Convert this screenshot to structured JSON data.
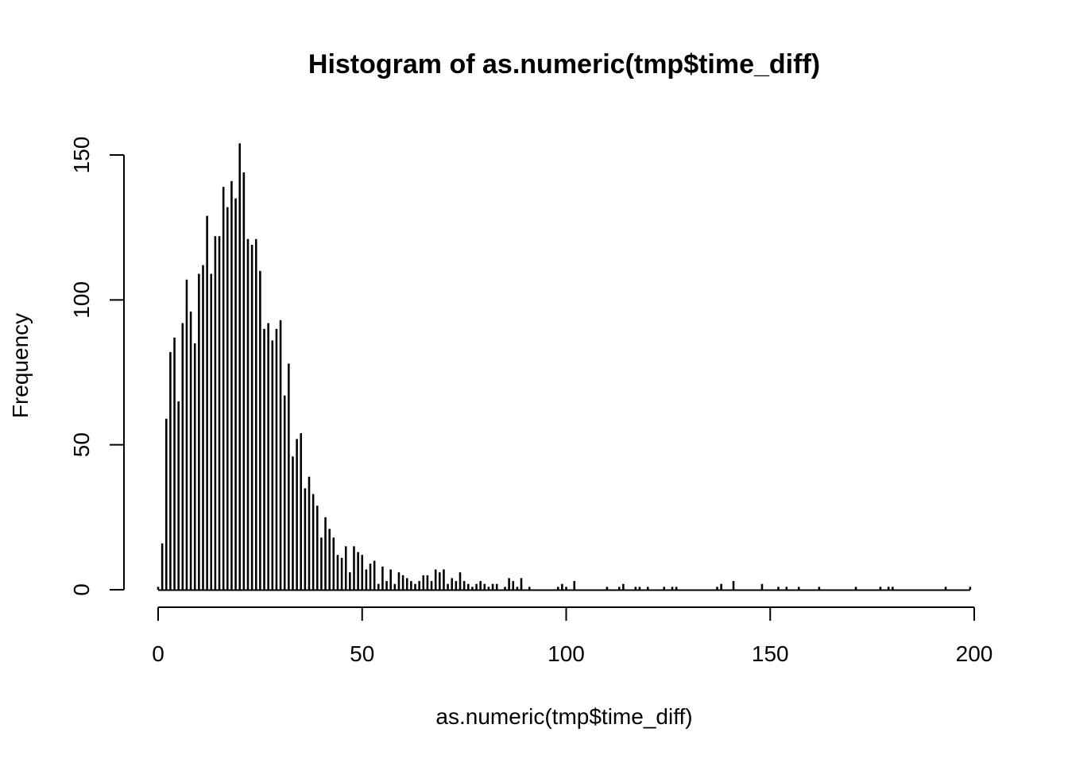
{
  "chart_data": {
    "type": "bar",
    "title": "Histogram of as.numeric(tmp$time_diff)",
    "xlabel": "as.numeric(tmp$time_diff)",
    "ylabel": "Frequency",
    "xlim": [
      0,
      200
    ],
    "ylim": [
      0,
      150
    ],
    "grid": false,
    "bin_width": 0.5,
    "x_ticks": [
      0,
      50,
      100,
      150,
      200
    ],
    "y_ticks": [
      0,
      50,
      100,
      150
    ],
    "x_tick_labels": [
      "0",
      "50",
      "100",
      "150",
      "200"
    ],
    "y_tick_labels": [
      "0",
      "50",
      "100",
      "150"
    ],
    "color": "#000000",
    "bins": [
      {
        "x": 0,
        "count": 1
      },
      {
        "x": 1,
        "count": 16
      },
      {
        "x": 2,
        "count": 59
      },
      {
        "x": 3,
        "count": 82
      },
      {
        "x": 4,
        "count": 87
      },
      {
        "x": 5,
        "count": 65
      },
      {
        "x": 6,
        "count": 92
      },
      {
        "x": 7,
        "count": 107
      },
      {
        "x": 8,
        "count": 96
      },
      {
        "x": 9,
        "count": 85
      },
      {
        "x": 10,
        "count": 109
      },
      {
        "x": 11,
        "count": 112
      },
      {
        "x": 12,
        "count": 129
      },
      {
        "x": 13,
        "count": 109
      },
      {
        "x": 14,
        "count": 122
      },
      {
        "x": 15,
        "count": 122
      },
      {
        "x": 16,
        "count": 139
      },
      {
        "x": 17,
        "count": 132
      },
      {
        "x": 18,
        "count": 141
      },
      {
        "x": 19,
        "count": 135
      },
      {
        "x": 20,
        "count": 154
      },
      {
        "x": 21,
        "count": 144
      },
      {
        "x": 22,
        "count": 121
      },
      {
        "x": 23,
        "count": 119
      },
      {
        "x": 24,
        "count": 121
      },
      {
        "x": 25,
        "count": 110
      },
      {
        "x": 26,
        "count": 90
      },
      {
        "x": 27,
        "count": 92
      },
      {
        "x": 28,
        "count": 86
      },
      {
        "x": 29,
        "count": 90
      },
      {
        "x": 30,
        "count": 93
      },
      {
        "x": 31,
        "count": 67
      },
      {
        "x": 32,
        "count": 78
      },
      {
        "x": 33,
        "count": 46
      },
      {
        "x": 34,
        "count": 52
      },
      {
        "x": 35,
        "count": 54
      },
      {
        "x": 36,
        "count": 35
      },
      {
        "x": 37,
        "count": 39
      },
      {
        "x": 38,
        "count": 33
      },
      {
        "x": 39,
        "count": 29
      },
      {
        "x": 40,
        "count": 18
      },
      {
        "x": 41,
        "count": 25
      },
      {
        "x": 42,
        "count": 21
      },
      {
        "x": 43,
        "count": 18
      },
      {
        "x": 44,
        "count": 12
      },
      {
        "x": 45,
        "count": 11
      },
      {
        "x": 46,
        "count": 15
      },
      {
        "x": 47,
        "count": 6
      },
      {
        "x": 48,
        "count": 15
      },
      {
        "x": 49,
        "count": 13
      },
      {
        "x": 50,
        "count": 12
      },
      {
        "x": 51,
        "count": 7
      },
      {
        "x": 52,
        "count": 9
      },
      {
        "x": 53,
        "count": 10
      },
      {
        "x": 54,
        "count": 2
      },
      {
        "x": 55,
        "count": 8
      },
      {
        "x": 56,
        "count": 3
      },
      {
        "x": 57,
        "count": 7
      },
      {
        "x": 58,
        "count": 2
      },
      {
        "x": 59,
        "count": 6
      },
      {
        "x": 60,
        "count": 5
      },
      {
        "x": 61,
        "count": 4
      },
      {
        "x": 62,
        "count": 3
      },
      {
        "x": 63,
        "count": 2
      },
      {
        "x": 64,
        "count": 3
      },
      {
        "x": 65,
        "count": 5
      },
      {
        "x": 66,
        "count": 5
      },
      {
        "x": 67,
        "count": 3
      },
      {
        "x": 68,
        "count": 7
      },
      {
        "x": 69,
        "count": 6
      },
      {
        "x": 70,
        "count": 7
      },
      {
        "x": 71,
        "count": 2
      },
      {
        "x": 72,
        "count": 4
      },
      {
        "x": 73,
        "count": 3
      },
      {
        "x": 74,
        "count": 6
      },
      {
        "x": 75,
        "count": 3
      },
      {
        "x": 76,
        "count": 2
      },
      {
        "x": 77,
        "count": 1
      },
      {
        "x": 78,
        "count": 2
      },
      {
        "x": 79,
        "count": 3
      },
      {
        "x": 80,
        "count": 2
      },
      {
        "x": 81,
        "count": 1
      },
      {
        "x": 82,
        "count": 2
      },
      {
        "x": 83,
        "count": 2
      },
      {
        "x": 85,
        "count": 1
      },
      {
        "x": 86,
        "count": 4
      },
      {
        "x": 87,
        "count": 3
      },
      {
        "x": 88,
        "count": 1
      },
      {
        "x": 89,
        "count": 4
      },
      {
        "x": 91,
        "count": 1
      },
      {
        "x": 98,
        "count": 1
      },
      {
        "x": 99,
        "count": 2
      },
      {
        "x": 100,
        "count": 1
      },
      {
        "x": 102,
        "count": 3
      },
      {
        "x": 110,
        "count": 1
      },
      {
        "x": 113,
        "count": 1
      },
      {
        "x": 114,
        "count": 2
      },
      {
        "x": 117,
        "count": 1
      },
      {
        "x": 118,
        "count": 1
      },
      {
        "x": 120,
        "count": 1
      },
      {
        "x": 124,
        "count": 1
      },
      {
        "x": 126,
        "count": 1
      },
      {
        "x": 127,
        "count": 1
      },
      {
        "x": 137,
        "count": 1
      },
      {
        "x": 138,
        "count": 2
      },
      {
        "x": 141,
        "count": 3
      },
      {
        "x": 148,
        "count": 2
      },
      {
        "x": 152,
        "count": 1
      },
      {
        "x": 154,
        "count": 1
      },
      {
        "x": 157,
        "count": 1
      },
      {
        "x": 162,
        "count": 1
      },
      {
        "x": 171,
        "count": 1
      },
      {
        "x": 177,
        "count": 1
      },
      {
        "x": 179,
        "count": 1
      },
      {
        "x": 180,
        "count": 1
      },
      {
        "x": 193,
        "count": 1
      },
      {
        "x": 199,
        "count": 1
      }
    ]
  }
}
